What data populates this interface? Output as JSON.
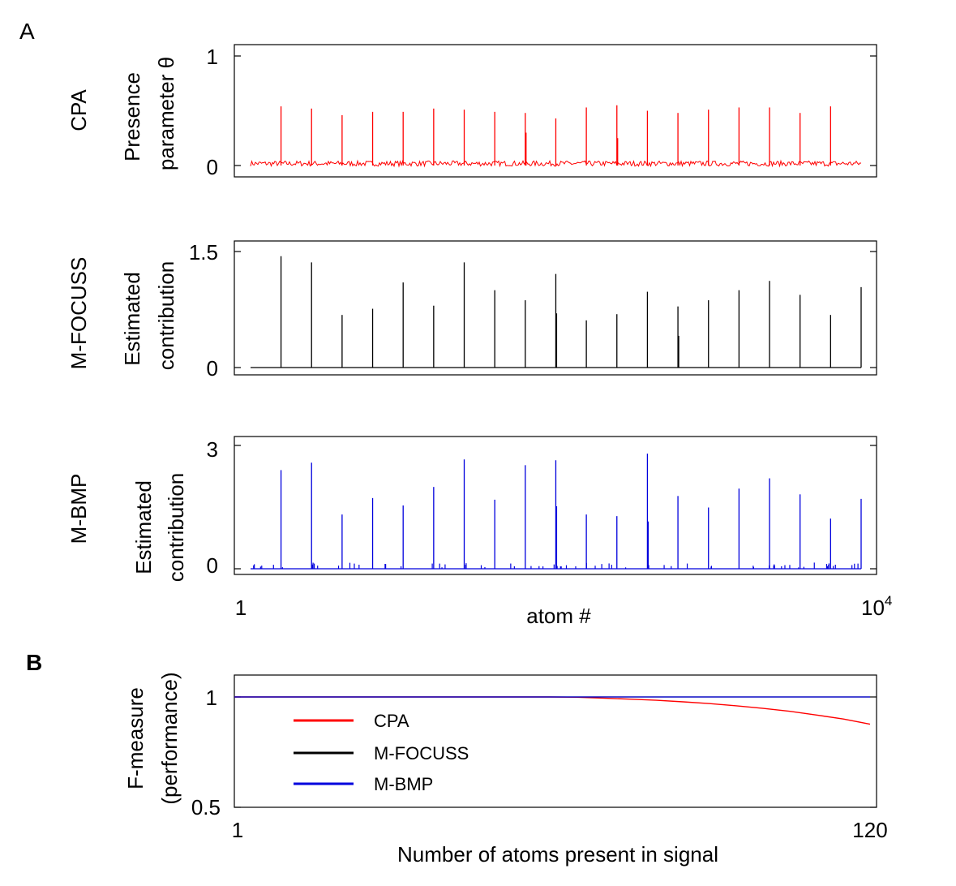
{
  "panels": {
    "a_label": "A",
    "b_label": "B"
  },
  "chart_data": [
    {
      "type": "line",
      "panel": "A",
      "row_label": "CPA",
      "ylabel": "Presence parameter θ",
      "ylabel_lines": [
        "Presence",
        "parameter θ"
      ],
      "ylim": [
        0,
        1
      ],
      "yticks": [
        "0",
        "1"
      ],
      "xlim": [
        1,
        10000
      ],
      "color": "#ff0000",
      "baseline_noise": 0.03,
      "spikes": [
        {
          "x": 500,
          "value": 0.54
        },
        {
          "x": 1000,
          "value": 0.52
        },
        {
          "x": 1500,
          "value": 0.46
        },
        {
          "x": 2000,
          "value": 0.49
        },
        {
          "x": 2500,
          "value": 0.49
        },
        {
          "x": 3000,
          "value": 0.52
        },
        {
          "x": 3500,
          "value": 0.51
        },
        {
          "x": 4000,
          "value": 0.49
        },
        {
          "x": 4500,
          "value": 0.48
        },
        {
          "x": 5000,
          "value": 0.43
        },
        {
          "x": 5500,
          "value": 0.53
        },
        {
          "x": 6000,
          "value": 0.55
        },
        {
          "x": 6500,
          "value": 0.5
        },
        {
          "x": 7000,
          "value": 0.48
        },
        {
          "x": 7500,
          "value": 0.51
        },
        {
          "x": 8000,
          "value": 0.53
        },
        {
          "x": 8500,
          "value": 0.53
        },
        {
          "x": 9000,
          "value": 0.48
        },
        {
          "x": 9500,
          "value": 0.54
        }
      ],
      "secondary_spikes": [
        {
          "x": 4500,
          "value": 0.3
        },
        {
          "x": 6000,
          "value": 0.25
        }
      ]
    },
    {
      "type": "line",
      "panel": "A",
      "row_label": "M-FOCUSS",
      "ylabel": "Estimated contribution",
      "ylabel_lines": [
        "Estimated",
        "contribution"
      ],
      "ylim": [
        0,
        1.5
      ],
      "yticks": [
        "0",
        "1.5"
      ],
      "xlim": [
        1,
        10000
      ],
      "color": "#000000",
      "spikes": [
        {
          "x": 500,
          "value": 1.44
        },
        {
          "x": 1000,
          "value": 1.36
        },
        {
          "x": 1500,
          "value": 0.68
        },
        {
          "x": 2000,
          "value": 0.76
        },
        {
          "x": 2500,
          "value": 1.1
        },
        {
          "x": 3000,
          "value": 0.8
        },
        {
          "x": 3500,
          "value": 1.36
        },
        {
          "x": 4000,
          "value": 1.0
        },
        {
          "x": 4500,
          "value": 0.87
        },
        {
          "x": 5000,
          "value": 1.21
        },
        {
          "x": 5500,
          "value": 0.61
        },
        {
          "x": 6000,
          "value": 0.69
        },
        {
          "x": 6500,
          "value": 0.98
        },
        {
          "x": 7000,
          "value": 0.79
        },
        {
          "x": 7500,
          "value": 0.87
        },
        {
          "x": 8000,
          "value": 1.0
        },
        {
          "x": 8500,
          "value": 1.12
        },
        {
          "x": 9000,
          "value": 0.94
        },
        {
          "x": 9500,
          "value": 0.68
        },
        {
          "x": 10000,
          "value": 1.04
        }
      ],
      "secondary_spikes": [
        {
          "x": 5000,
          "value": 0.7
        },
        {
          "x": 7000,
          "value": 0.41
        }
      ]
    },
    {
      "type": "line",
      "panel": "A",
      "row_label": "M-BMP",
      "ylabel": "Estimated contribution",
      "ylabel_lines": [
        "Estimated",
        "contribution"
      ],
      "ylim": [
        0,
        3
      ],
      "yticks": [
        "0",
        "3"
      ],
      "xlim": [
        1,
        10000
      ],
      "xlabel": "atom #",
      "xticks": [
        "1",
        "10"
      ],
      "xtick_superscript": "4",
      "color": "#0000dd",
      "spikes": [
        {
          "x": 500,
          "value": 2.4
        },
        {
          "x": 1000,
          "value": 2.58
        },
        {
          "x": 1500,
          "value": 1.32
        },
        {
          "x": 2000,
          "value": 1.72
        },
        {
          "x": 2500,
          "value": 1.54
        },
        {
          "x": 3000,
          "value": 1.99
        },
        {
          "x": 3500,
          "value": 2.66
        },
        {
          "x": 4000,
          "value": 1.68
        },
        {
          "x": 4500,
          "value": 2.52
        },
        {
          "x": 5000,
          "value": 2.64
        },
        {
          "x": 5500,
          "value": 1.32
        },
        {
          "x": 6000,
          "value": 1.28
        },
        {
          "x": 6500,
          "value": 2.8
        },
        {
          "x": 7000,
          "value": 1.77
        },
        {
          "x": 7500,
          "value": 1.49
        },
        {
          "x": 8000,
          "value": 1.95
        },
        {
          "x": 8500,
          "value": 2.2
        },
        {
          "x": 9000,
          "value": 1.81
        },
        {
          "x": 9500,
          "value": 1.22
        },
        {
          "x": 10000,
          "value": 1.7
        }
      ],
      "secondary_spikes": [
        {
          "x": 5000,
          "value": 1.52
        },
        {
          "x": 6500,
          "value": 1.15
        }
      ]
    },
    {
      "type": "line",
      "panel": "B",
      "ylabel": "F-measure (performance)",
      "ylabel_lines": [
        "F-measure",
        "(performance)"
      ],
      "xlabel": "Number of atoms present in signal",
      "xlim": [
        1,
        120
      ],
      "ylim": [
        0.5,
        1.1
      ],
      "xticks": [
        "1",
        "120"
      ],
      "yticks": [
        "0.5",
        "1"
      ],
      "legend": "upper-left",
      "series": [
        {
          "name": "CPA",
          "color": "#ff0000",
          "x": [
            1,
            10,
            20,
            30,
            40,
            50,
            60,
            65,
            70,
            75,
            80,
            85,
            90,
            95,
            100,
            105,
            110,
            115,
            120
          ],
          "y": [
            1,
            1,
            1,
            1,
            1,
            1,
            1,
            0.999,
            0.995,
            0.99,
            0.985,
            0.978,
            0.97,
            0.96,
            0.948,
            0.935,
            0.918,
            0.9,
            0.877
          ]
        },
        {
          "name": "M-FOCUSS",
          "color": "#000000",
          "x": [
            1,
            120
          ],
          "y": [
            1,
            1
          ]
        },
        {
          "name": "M-BMP",
          "color": "#0000dd",
          "x": [
            1,
            120
          ],
          "y": [
            1,
            1
          ]
        }
      ]
    }
  ]
}
